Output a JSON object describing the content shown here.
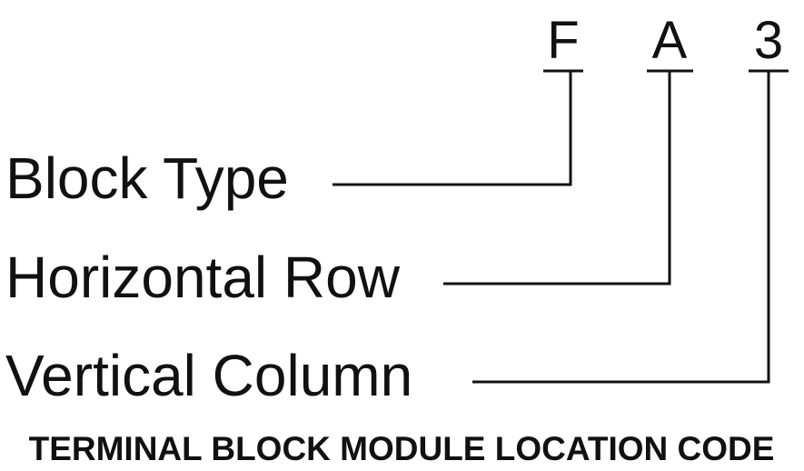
{
  "code": {
    "letters": [
      "F",
      "A",
      "3"
    ]
  },
  "fields": [
    {
      "label": "Block Type",
      "points_to": "F"
    },
    {
      "label": "Horizontal Row",
      "points_to": "A"
    },
    {
      "label": "Vertical Column",
      "points_to": "3"
    }
  ],
  "caption": "TERMINAL BLOCK MODULE LOCATION CODE",
  "colors": {
    "ink": "#111111",
    "background": "#ffffff"
  }
}
